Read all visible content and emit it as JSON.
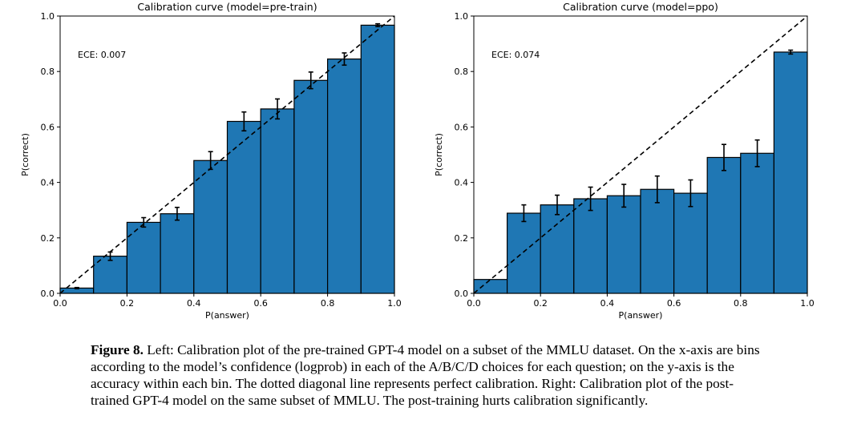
{
  "caption": {
    "label": "Figure 8.",
    "text": " Left: Calibration plot of the pre-trained GPT-4 model on a subset of the MMLU dataset. On the x-axis are bins according to the model’s confidence (logprob) in each of the A/B/C/D choices for each question; on the y-axis is the accuracy within each bin. The dotted diagonal line represents perfect calibration. Right: Calibration plot of the post-trained GPT-4 model on the same subset of MMLU. The post-training hurts calibration significantly."
  },
  "colors": {
    "bar": "#1f77b4",
    "edge": "#000000",
    "diagonal": "#000000"
  },
  "chart_data": [
    {
      "type": "bar",
      "title": "Calibration curve (model=pre-train)",
      "xlabel": "P(answer)",
      "ylabel": "P(correct)",
      "annotation": "ECE: 0.007",
      "xlim": [
        0,
        1
      ],
      "ylim": [
        0,
        1
      ],
      "xticks": [
        "0.0",
        "0.2",
        "0.4",
        "0.6",
        "0.8",
        "1.0"
      ],
      "yticks": [
        "0.0",
        "0.2",
        "0.4",
        "0.6",
        "0.8",
        "1.0"
      ],
      "bin_edges": [
        0,
        0.1,
        0.2,
        0.3,
        0.4,
        0.5,
        0.6,
        0.7,
        0.8,
        0.9,
        1.0
      ],
      "values": [
        0.019,
        0.134,
        0.256,
        0.287,
        0.479,
        0.62,
        0.665,
        0.768,
        0.845,
        0.967
      ],
      "errors": [
        0.002,
        0.015,
        0.017,
        0.023,
        0.032,
        0.034,
        0.036,
        0.03,
        0.022,
        0.005
      ],
      "reference_line": "diagonal dashed y=x"
    },
    {
      "type": "bar",
      "title": "Calibration curve (model=ppo)",
      "xlabel": "P(answer)",
      "ylabel": "P(correct)",
      "annotation": "ECE: 0.074",
      "xlim": [
        0,
        1
      ],
      "ylim": [
        0,
        1
      ],
      "xticks": [
        "0.0",
        "0.2",
        "0.4",
        "0.6",
        "0.8",
        "1.0"
      ],
      "yticks": [
        "0.0",
        "0.2",
        "0.4",
        "0.6",
        "0.8",
        "1.0"
      ],
      "bin_edges": [
        0,
        0.1,
        0.2,
        0.3,
        0.4,
        0.5,
        0.6,
        0.7,
        0.8,
        0.9,
        1.0
      ],
      "values": [
        0.05,
        0.289,
        0.319,
        0.341,
        0.352,
        0.375,
        0.361,
        0.49,
        0.505,
        0.87
      ],
      "errors": [
        0,
        0.03,
        0.035,
        0.042,
        0.041,
        0.048,
        0.048,
        0.047,
        0.048,
        0.007
      ],
      "reference_line": "diagonal dashed y=x"
    }
  ]
}
